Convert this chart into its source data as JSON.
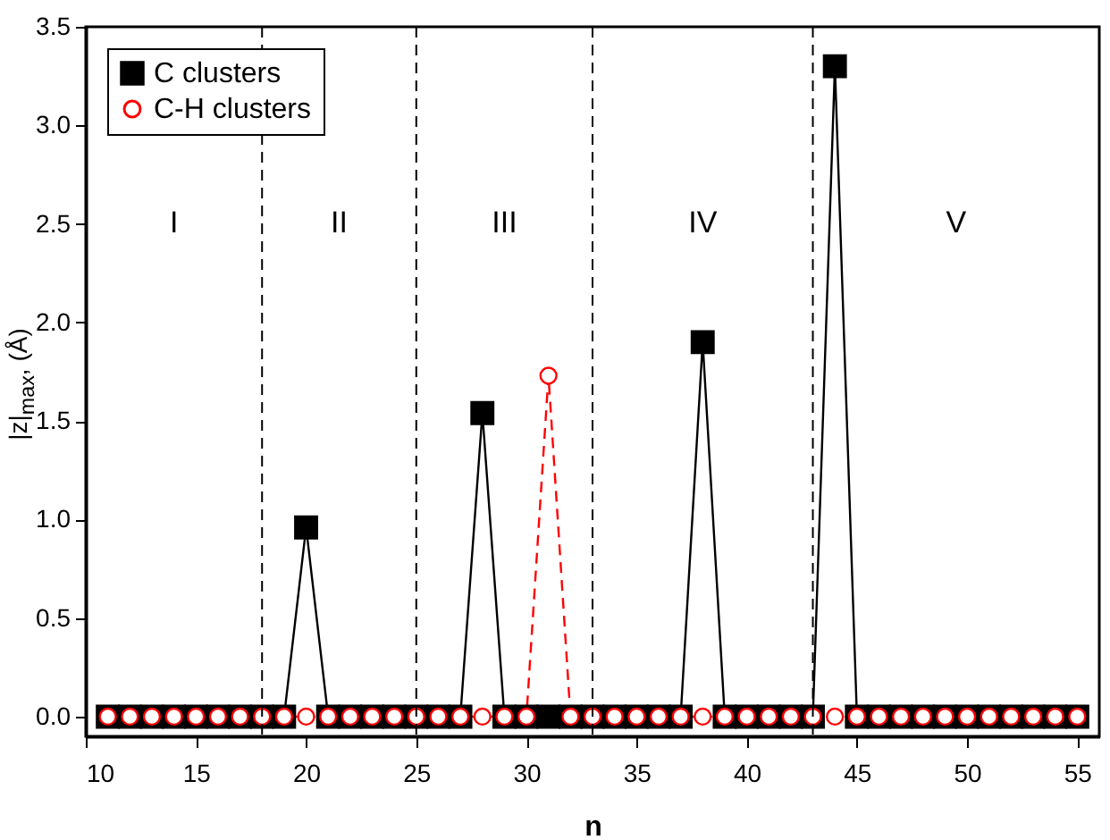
{
  "chart_data": {
    "type": "line",
    "xlabel": "n",
    "ylabel": "|z|$_{max}$, (Å)",
    "x": [
      11,
      12,
      13,
      14,
      15,
      16,
      17,
      18,
      19,
      20,
      21,
      22,
      23,
      24,
      25,
      26,
      27,
      28,
      29,
      30,
      31,
      32,
      33,
      34,
      35,
      36,
      37,
      38,
      39,
      40,
      41,
      42,
      43,
      44,
      45,
      46,
      47,
      48,
      49,
      50,
      51,
      52,
      53,
      54,
      55
    ],
    "series": [
      {
        "name": "C clusters",
        "color": "#000000",
        "marker": "square",
        "line_style": "solid",
        "values": [
          0,
          0,
          0,
          0,
          0,
          0,
          0,
          0,
          0,
          0.96,
          0,
          0,
          0,
          0,
          0,
          0,
          0,
          1.54,
          0,
          0,
          0,
          0,
          0,
          0,
          0,
          0,
          0,
          1.9,
          0,
          0,
          0,
          0,
          0,
          3.3,
          0,
          0,
          0,
          0,
          0,
          0,
          0,
          0,
          0,
          0,
          0
        ]
      },
      {
        "name": "C-H clusters",
        "color": "#ff0000",
        "marker": "circle",
        "line_style": "dashed",
        "values": [
          0,
          0,
          0,
          0,
          0,
          0,
          0,
          0,
          0,
          0,
          0,
          0,
          0,
          0,
          0,
          0,
          0,
          0,
          0,
          0,
          1.73,
          0,
          0,
          0,
          0,
          0,
          0,
          0,
          0,
          0,
          0,
          0,
          0,
          0,
          0,
          0,
          0,
          0,
          0,
          0,
          0,
          0,
          0,
          0,
          0
        ]
      }
    ],
    "xlim": [
      10,
      56
    ],
    "xticks": [
      10,
      15,
      20,
      25,
      30,
      35,
      40,
      45,
      50,
      55
    ],
    "ylim": [
      -0.1,
      3.5
    ],
    "yticks": [
      {
        "value": 0,
        "label": "0.0"
      },
      {
        "value": 0.5,
        "label": "0.5"
      },
      {
        "value": 1,
        "label": "1.0"
      },
      {
        "value": 1.5,
        "label": "1.5"
      },
      {
        "value": 2,
        "label": "2.0"
      },
      {
        "value": 2.5,
        "label": "2.5"
      },
      {
        "value": 3,
        "label": "3.0"
      },
      {
        "value": 3.5,
        "label": "3.5"
      }
    ],
    "ref_lines": [
      {
        "axis": "x",
        "value": 18,
        "line_style": "dashed",
        "color": "#000000"
      },
      {
        "axis": "x",
        "value": 25,
        "line_style": "dashed",
        "color": "#000000"
      },
      {
        "axis": "x",
        "value": 33,
        "line_style": "dashed",
        "color": "#000000"
      },
      {
        "axis": "x",
        "value": 43,
        "line_style": "dashed",
        "color": "#000000"
      }
    ],
    "annotations": [
      "I",
      "II",
      "III",
      "IV",
      "V"
    ],
    "legend": "top left",
    "grid": false
  }
}
